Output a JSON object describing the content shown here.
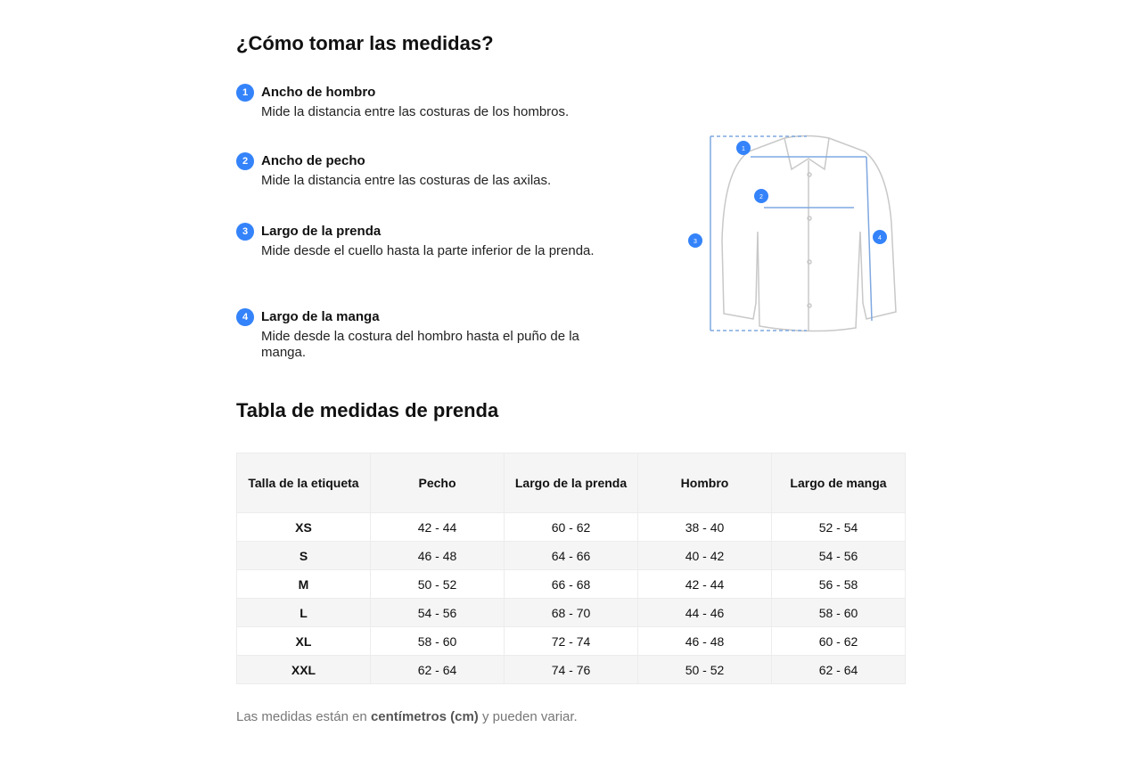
{
  "how_to": {
    "title": "¿Cómo tomar las medidas?",
    "steps": [
      {
        "n": "1",
        "title": "Ancho de hombro",
        "desc": "Mide la distancia entre las costuras de los hombros."
      },
      {
        "n": "2",
        "title": "Ancho de pecho",
        "desc": "Mide la distancia entre las costuras de las axilas."
      },
      {
        "n": "3",
        "title": "Largo de la prenda",
        "desc": "Mide desde el cuello hasta la parte inferior de la prenda."
      },
      {
        "n": "4",
        "title": "Largo de la manga",
        "desc": "Mide desde la costura del hombro hasta el puño de la manga."
      }
    ]
  },
  "table": {
    "title": "Tabla de medidas de prenda",
    "headers": [
      "Talla de la etiqueta",
      "Pecho",
      "Largo de la prenda",
      "Hombro",
      "Largo de manga"
    ],
    "rows": [
      [
        "XS",
        "42 - 44",
        "60 - 62",
        "38 - 40",
        "52 - 54"
      ],
      [
        "S",
        "46 - 48",
        "64 - 66",
        "40 - 42",
        "54 - 56"
      ],
      [
        "M",
        "50 - 52",
        "66 - 68",
        "42 - 44",
        "56 - 58"
      ],
      [
        "L",
        "54 - 56",
        "68 - 70",
        "44 - 46",
        "58 - 60"
      ],
      [
        "XL",
        "58 - 60",
        "72 - 74",
        "46 - 48",
        "60 - 62"
      ],
      [
        "XXL",
        "62 - 64",
        "74 - 76",
        "50 - 52",
        "62 - 64"
      ]
    ]
  },
  "note": {
    "prefix": "Las medidas están en ",
    "bold": "centímetros (cm)",
    "suffix": " y pueden variar."
  },
  "colors": {
    "accent": "#3483fa"
  }
}
